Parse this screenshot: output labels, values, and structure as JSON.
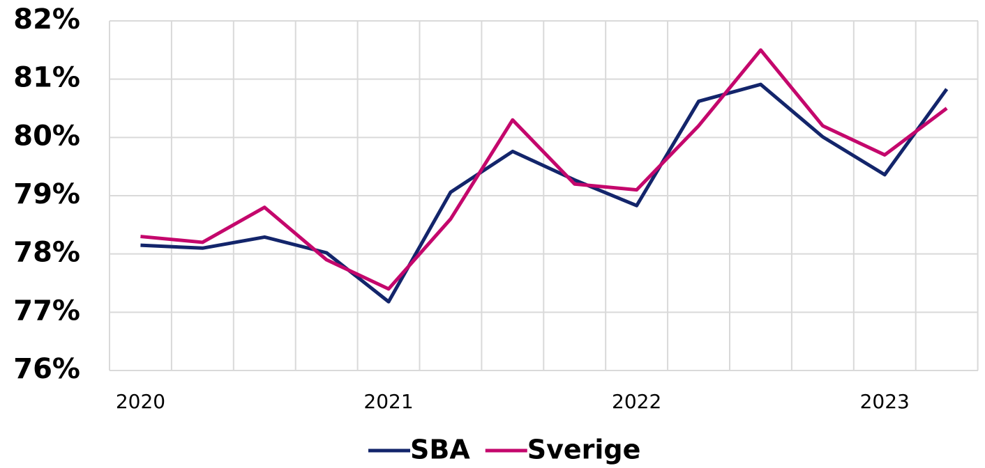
{
  "chart_data": {
    "type": "line",
    "categories": [
      "2020",
      null,
      null,
      null,
      "2021",
      null,
      null,
      null,
      "2022",
      null,
      null,
      null,
      "2023",
      null
    ],
    "series": [
      {
        "name": "SBA",
        "color": "#13256b",
        "values": [
          78.15,
          78.1,
          78.29,
          78.02,
          77.18,
          79.06,
          79.76,
          79.27,
          78.83,
          80.62,
          80.91,
          80.01,
          79.36,
          80.83
        ]
      },
      {
        "name": "Sverige",
        "color": "#c4076c",
        "values": [
          78.3,
          78.2,
          78.8,
          77.9,
          77.4,
          78.6,
          80.3,
          79.2,
          79.1,
          80.2,
          81.5,
          80.2,
          79.7,
          80.5
        ]
      }
    ],
    "ylim": [
      76,
      82
    ],
    "yticks": [
      {
        "value": 76,
        "label": "76%"
      },
      {
        "value": 77,
        "label": "77%"
      },
      {
        "value": 78,
        "label": "78%"
      },
      {
        "value": 79,
        "label": "79%"
      },
      {
        "value": 80,
        "label": "80%"
      },
      {
        "value": 81,
        "label": "81%"
      },
      {
        "value": 82,
        "label": "82%"
      }
    ],
    "grid": true,
    "legend": "bottom"
  }
}
